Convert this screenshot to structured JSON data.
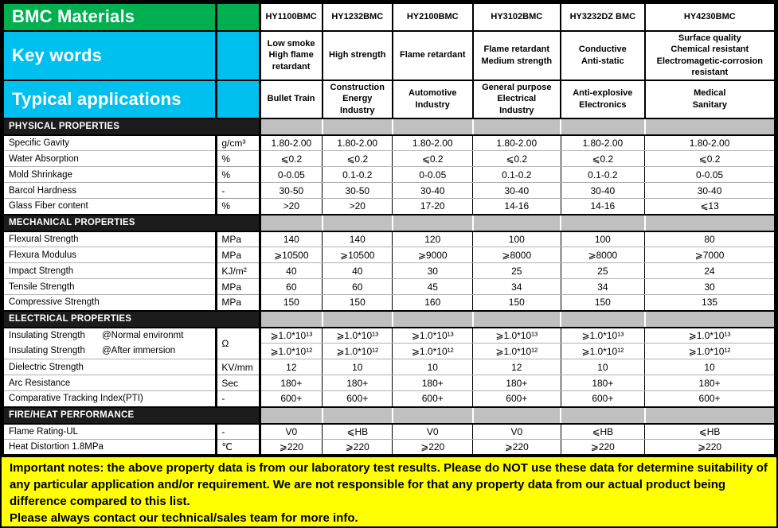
{
  "header": {
    "title": "BMC Materials",
    "keywords_label": "Key words",
    "applications_label": "Typical applications",
    "materials": [
      {
        "name": "HY1100BMC",
        "keywords": "Low smoke\nHigh flame\nretardant",
        "applications": "Bullet Train"
      },
      {
        "name": "HY1232BMC",
        "keywords": "High strength",
        "applications": "Construction\nEnergy\nIndustry"
      },
      {
        "name": "HY2100BMC",
        "keywords": "Flame retardant",
        "applications": "Automotive\nIndustry"
      },
      {
        "name": "HY3102BMC",
        "keywords": "Flame retardant\nMedium strength",
        "applications": "General purpose\nElectrical\nIndustry"
      },
      {
        "name": "HY3232DZ BMC",
        "keywords": "Conductive\nAnti-static",
        "applications": "Anti-explosive\nElectronics"
      },
      {
        "name": "HY4230BMC",
        "keywords": "Surface quality\nChemical resistant\nElectromagetic-corrosion\nresistant",
        "applications": "Medical\nSanitary"
      }
    ]
  },
  "sections": [
    {
      "title": "PHYSICAL PROPERTIES",
      "rows": [
        {
          "label": "Specific Gavity",
          "unit": "g/cm³",
          "values": [
            "1.80-2.00",
            "1.80-2.00",
            "1.80-2.00",
            "1.80-2.00",
            "1.80-2.00",
            "1.80-2.00"
          ]
        },
        {
          "label": "Water Absorption",
          "unit": "%",
          "values": [
            "⩽0.2",
            "⩽0.2",
            "⩽0.2",
            "⩽0.2",
            "⩽0.2",
            "⩽0.2"
          ]
        },
        {
          "label": "Mold Shrinkage",
          "unit": "%",
          "values": [
            "0-0.05",
            "0.1-0.2",
            "0-0.05",
            "0.1-0.2",
            "0.1-0.2",
            "0-0.05"
          ]
        },
        {
          "label": "Barcol Hardness",
          "unit": "-",
          "values": [
            "30-50",
            "30-50",
            "30-40",
            "30-40",
            "30-40",
            "30-40"
          ]
        },
        {
          "label": "Glass Fiber content",
          "unit": "%",
          "values": [
            ">20",
            ">20",
            "17-20",
            "14-16",
            "14-16",
            "⩽13"
          ]
        }
      ]
    },
    {
      "title": "MECHANICAL PROPERTIES",
      "rows": [
        {
          "label": "Flexural Strength",
          "unit": "MPa",
          "values": [
            "140",
            "140",
            "120",
            "100",
            "100",
            "80"
          ]
        },
        {
          "label": "Flexura Modulus",
          "unit": "MPa",
          "values": [
            "⩾10500",
            "⩾10500",
            "⩾9000",
            "⩾8000",
            "⩾8000",
            "⩾7000"
          ]
        },
        {
          "label": "Impact Strength",
          "unit": "KJ/m²",
          "values": [
            "40",
            "40",
            "30",
            "25",
            "25",
            "24"
          ]
        },
        {
          "label": "Tensile Strength",
          "unit": "MPa",
          "values": [
            "60",
            "60",
            "45",
            "34",
            "34",
            "30"
          ]
        },
        {
          "label": "Compressive Strength",
          "unit": "MPa",
          "values": [
            "150",
            "150",
            "160",
            "150",
            "150",
            "135"
          ]
        }
      ]
    },
    {
      "title": "ELECTRICAL PROPERTIES",
      "rows": [
        {
          "label": "Insulating Strength",
          "sublabel": "@Normal environmt",
          "unit": "Ω",
          "unit_rowspan": 2,
          "no_label_divider": true,
          "values": [
            "⩾1.0*10¹³",
            "⩾1.0*10¹³",
            "⩾1.0*10¹³",
            "⩾1.0*10¹³",
            "⩾1.0*10¹³",
            "⩾1.0*10¹³"
          ]
        },
        {
          "label": "Insulating Strength",
          "sublabel": "@After immersion",
          "unit": null,
          "values": [
            "⩾1.0*10¹²",
            "⩾1.0*10¹²",
            "⩾1.0*10¹²",
            "⩾1.0*10¹²",
            "⩾1.0*10¹²",
            "⩾1.0*10¹²"
          ]
        },
        {
          "label": "Dielectric Strength",
          "unit": "KV/mm",
          "values": [
            "12",
            "10",
            "10",
            "12",
            "10",
            "10"
          ]
        },
        {
          "label": "Arc Resistance",
          "unit": "Sec",
          "values": [
            "180+",
            "180+",
            "180+",
            "180+",
            "180+",
            "180+"
          ]
        },
        {
          "label": "Comparative Tracking Index(PTI)",
          "unit": "-",
          "values": [
            "600+",
            "600+",
            "600+",
            "600+",
            "600+",
            "600+"
          ]
        }
      ]
    },
    {
      "title": "FIRE/HEAT PERFORMANCE",
      "rows": [
        {
          "label": "Flame Rating-UL",
          "unit": "-",
          "values": [
            "V0",
            "⩽HB",
            "V0",
            "V0",
            "⩽HB",
            "⩽HB"
          ]
        },
        {
          "label": "Heat Distortion 1.8MPa",
          "unit": "℃",
          "values": [
            "⩾220",
            "⩾220",
            "⩾220",
            "⩾220",
            "⩾220",
            "⩾220"
          ]
        }
      ]
    }
  ],
  "notes": {
    "paragraph1": "Important notes: the above property data is from our laboratory test results. Please do NOT use these data for determine suitability of any particular application and/or requirement. We are not responsible for that any property data from our actual product being difference compared to this list.",
    "paragraph2": "Please always contact our technical/sales team for more info."
  }
}
